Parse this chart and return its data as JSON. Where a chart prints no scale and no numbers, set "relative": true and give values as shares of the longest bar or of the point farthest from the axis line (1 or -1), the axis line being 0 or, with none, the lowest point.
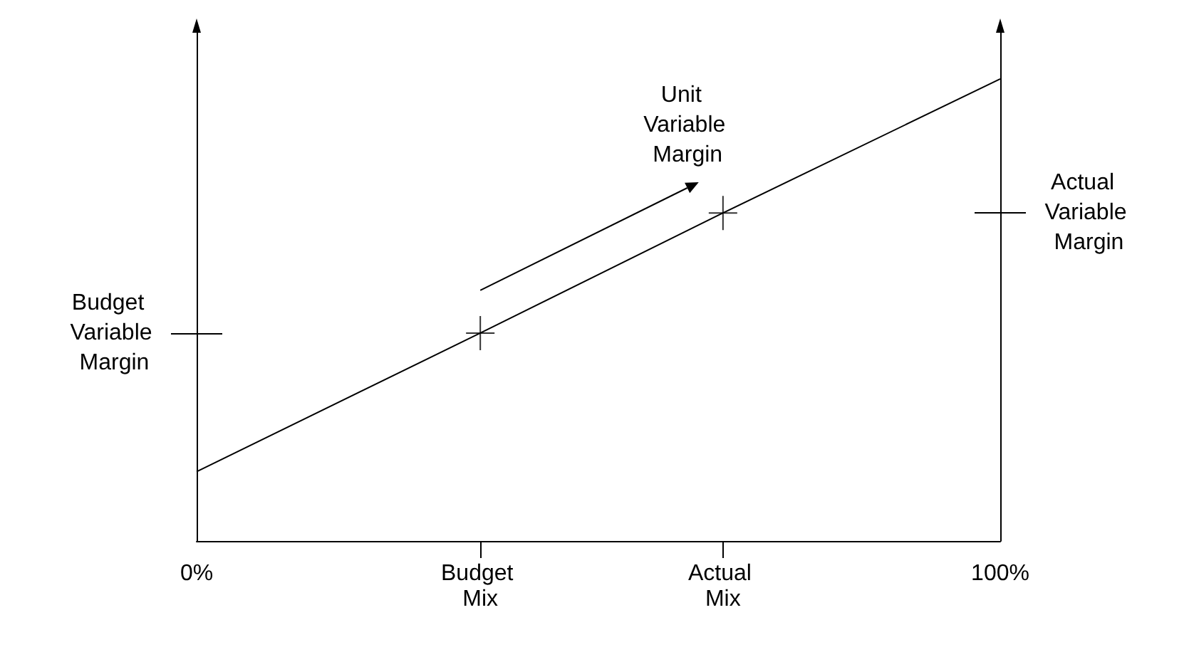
{
  "chart_data": {
    "type": "line",
    "relative": true,
    "grid": false,
    "tick_labels": "x",
    "xlim": [
      0,
      100
    ],
    "xticks": [
      {
        "value": 0,
        "label": "0%"
      },
      {
        "value": 35.3,
        "label": "Budget Mix"
      },
      {
        "value": 65.5,
        "label": "Actual Mix"
      },
      {
        "value": 100,
        "label": "100%"
      }
    ],
    "series": [
      {
        "color": "#000000",
        "marker": "none",
        "x": [
          0,
          35.3,
          65.5,
          100
        ],
        "values": [
          0.15,
          0.45,
          0.71,
          1
        ]
      },
      {
        "type": "scatter",
        "color": "#000000",
        "marker": "cross",
        "x": [
          35.3,
          65.5
        ],
        "values": [
          0.45,
          0.71
        ]
      }
    ],
    "annotations": [
      "Budget Variable Margin",
      "Actual Variable Margin",
      "Unit Variable Margin"
    ]
  }
}
